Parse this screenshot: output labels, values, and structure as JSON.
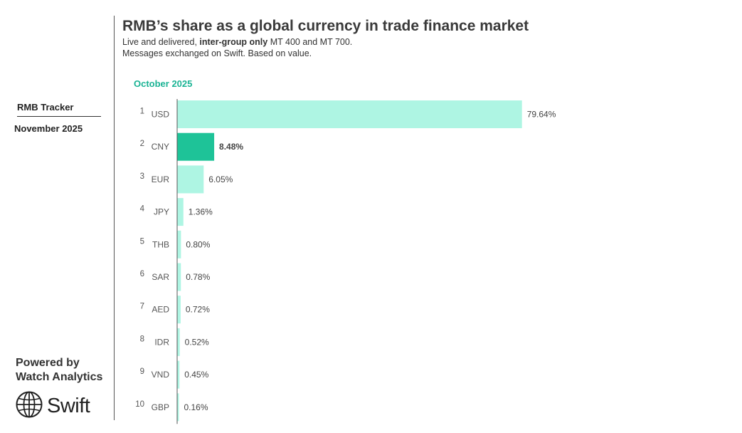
{
  "sidebar": {
    "tracker_label": "RMB Tracker",
    "date_label": "November 2025",
    "powered_line1": "Powered by",
    "powered_line2": "Watch Analytics",
    "logo_text": "Swift",
    "logo_icon": "globe-icon"
  },
  "header": {
    "title": "RMB’s share as a global currency in trade finance market",
    "subtitle_prefix": "Live and delivered, ",
    "subtitle_bold": "inter-group only",
    "subtitle_suffix": " MT 400 and MT 700.",
    "subtitle_line2": "Messages exchanged on Swift. Based on value."
  },
  "colors": {
    "bar_default": "#aef5e3",
    "bar_highlight": "#1ec398",
    "period_label": "#1ab394",
    "axis_line": "#555555"
  },
  "chart_data": {
    "type": "bar",
    "orientation": "horizontal",
    "period": "October 2025",
    "ranks": [
      "1",
      "2",
      "3",
      "4",
      "5",
      "6",
      "7",
      "8",
      "9",
      "10"
    ],
    "categories": [
      "USD",
      "CNY",
      "EUR",
      "JPY",
      "THB",
      "SAR",
      "AED",
      "IDR",
      "VND",
      "GBP"
    ],
    "values": [
      79.64,
      8.48,
      6.05,
      1.36,
      0.8,
      0.78,
      0.72,
      0.52,
      0.45,
      0.16
    ],
    "value_labels": [
      "79.64%",
      "8.48%",
      "6.05%",
      "1.36%",
      "0.80%",
      "0.78%",
      "0.72%",
      "0.52%",
      "0.45%",
      "0.16%"
    ],
    "highlight": "CNY",
    "xlim": [
      0,
      80
    ]
  }
}
